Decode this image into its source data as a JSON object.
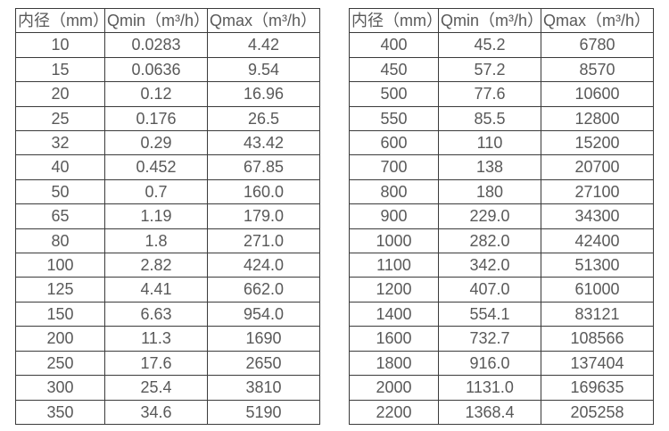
{
  "colors": {
    "border": "#3b3b3b",
    "text": "#595959",
    "background": "#ffffff"
  },
  "tables": [
    {
      "name": "flow-rates-small-diameters",
      "headers": [
        "内径（mm）",
        "Qmin（m³/h）",
        "Qmax（m³/h）"
      ],
      "rows": [
        [
          "10",
          "0.0283",
          "4.42"
        ],
        [
          "15",
          "0.0636",
          "9.54"
        ],
        [
          "20",
          "0.12",
          "16.96"
        ],
        [
          "25",
          "0.176",
          "26.5"
        ],
        [
          "32",
          "0.29",
          "43.42"
        ],
        [
          "40",
          "0.452",
          "67.85"
        ],
        [
          "50",
          "0.7",
          "160.0"
        ],
        [
          "65",
          "1.19",
          "179.0"
        ],
        [
          "80",
          "1.8",
          "271.0"
        ],
        [
          "100",
          "2.82",
          "424.0"
        ],
        [
          "125",
          "4.41",
          "662.0"
        ],
        [
          "150",
          "6.63",
          "954.0"
        ],
        [
          "200",
          "11.3",
          "1690"
        ],
        [
          "250",
          "17.6",
          "2650"
        ],
        [
          "300",
          "25.4",
          "3810"
        ],
        [
          "350",
          "34.6",
          "5190"
        ]
      ]
    },
    {
      "name": "flow-rates-large-diameters",
      "headers": [
        "内径（mm）",
        "Qmin（m³/h）",
        "Qmax（m³/h）"
      ],
      "rows": [
        [
          "400",
          "45.2",
          "6780"
        ],
        [
          "450",
          "57.2",
          "8570"
        ],
        [
          "500",
          "77.6",
          "10600"
        ],
        [
          "550",
          "85.5",
          "12800"
        ],
        [
          "600",
          "110",
          "15200"
        ],
        [
          "700",
          "138",
          "20700"
        ],
        [
          "800",
          "180",
          "27100"
        ],
        [
          "900",
          "229.0",
          "34300"
        ],
        [
          "1000",
          "282.0",
          "42400"
        ],
        [
          "1100",
          "342.0",
          "51300"
        ],
        [
          "1200",
          "407.0",
          "61000"
        ],
        [
          "1400",
          "554.1",
          "83121"
        ],
        [
          "1600",
          "732.7",
          "108566"
        ],
        [
          "1800",
          "916.0",
          "137404"
        ],
        [
          "2000",
          "1131.0",
          "169635"
        ],
        [
          "2200",
          "1368.4",
          "205258"
        ]
      ]
    }
  ]
}
